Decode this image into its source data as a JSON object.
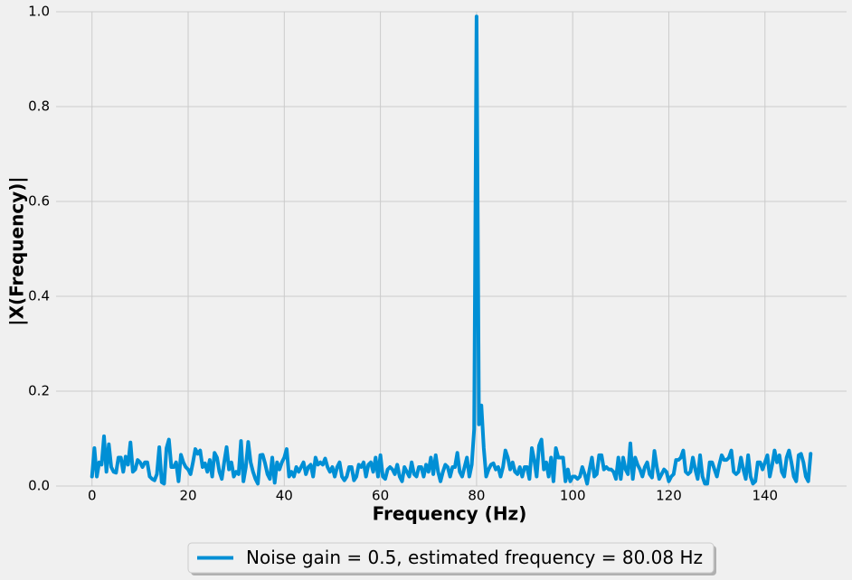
{
  "chart_data": {
    "type": "line",
    "xlabel": "Frequency (Hz)",
    "ylabel": "|X(Frequency)|",
    "x": [
      0,
      0.5,
      1,
      1.5,
      2,
      2.5,
      3,
      3.5,
      4,
      4.5,
      5,
      5.5,
      6,
      6.5,
      7,
      7.5,
      8,
      8.5,
      9,
      9.5,
      10,
      10.5,
      11,
      11.5,
      12,
      12.5,
      13,
      13.5,
      14,
      14.5,
      15,
      15.5,
      16,
      16.5,
      17,
      17.5,
      18,
      18.5,
      19,
      19.5,
      20,
      20.5,
      21,
      21.5,
      22,
      22.5,
      23,
      23.5,
      24,
      24.5,
      25,
      25.5,
      26,
      26.5,
      27,
      27.5,
      28,
      28.5,
      29,
      29.5,
      30,
      30.5,
      31,
      31.5,
      32,
      32.5,
      33,
      33.5,
      34,
      34.5,
      35,
      35.5,
      36,
      36.5,
      37,
      37.5,
      38,
      38.5,
      39,
      39.5,
      40,
      40.5,
      41,
      41.5,
      42,
      42.5,
      43,
      43.5,
      44,
      44.5,
      45,
      45.5,
      46,
      46.5,
      47,
      47.5,
      48,
      48.5,
      49,
      49.5,
      50,
      50.5,
      51,
      51.5,
      52,
      52.5,
      53,
      53.5,
      54,
      54.5,
      55,
      55.5,
      56,
      56.5,
      57,
      57.5,
      58,
      58.5,
      59,
      59.5,
      60,
      60.5,
      61,
      61.5,
      62,
      62.5,
      63,
      63.5,
      64,
      64.5,
      65,
      65.5,
      66,
      66.5,
      67,
      67.5,
      68,
      68.5,
      69,
      69.5,
      70,
      70.5,
      71,
      71.5,
      72,
      72.5,
      73,
      73.5,
      74,
      74.5,
      75,
      75.5,
      76,
      76.5,
      77,
      77.5,
      78,
      78.5,
      79,
      79.5,
      80,
      80.5,
      81,
      81.5,
      82,
      82.5,
      83,
      83.5,
      84,
      84.5,
      85,
      85.5,
      86,
      86.5,
      87,
      87.5,
      88,
      88.5,
      89,
      89.5,
      90,
      90.5,
      91,
      91.5,
      92,
      92.5,
      93,
      93.5,
      94,
      94.5,
      95,
      95.5,
      96,
      96.5,
      97,
      97.5,
      98,
      98.5,
      99,
      99.5,
      100,
      100.5,
      101,
      101.5,
      102,
      102.5,
      103,
      103.5,
      104,
      104.5,
      105,
      105.5,
      106,
      106.5,
      107,
      107.5,
      108,
      108.5,
      109,
      109.5,
      110,
      110.5,
      111,
      111.5,
      112,
      112.5,
      113,
      113.5,
      114,
      114.5,
      115,
      115.5,
      116,
      116.5,
      117,
      117.5,
      118,
      118.5,
      119,
      119.5,
      120,
      120.5,
      121,
      121.5,
      122,
      122.5,
      123,
      123.5,
      124,
      124.5,
      125,
      125.5,
      126,
      126.5,
      127,
      127.5,
      128,
      128.5,
      129,
      129.5,
      130,
      130.5,
      131,
      131.5,
      132,
      132.5,
      133,
      133.5,
      134,
      134.5,
      135,
      135.5,
      136,
      136.5,
      137,
      137.5,
      138,
      138.5,
      139,
      139.5,
      140,
      140.5,
      141,
      141.5,
      142,
      142.5,
      143,
      143.5,
      144,
      144.5,
      145,
      145.5,
      146,
      146.5,
      147,
      147.5,
      148,
      148.5,
      149,
      149.5
    ],
    "series": [
      {
        "name": "Noise gain = 0.5, estimated frequency = 80.08 Hz",
        "color": "#008fd5",
        "values": [
          0.02,
          0.08,
          0.02,
          0.05,
          0.045,
          0.105,
          0.03,
          0.088,
          0.04,
          0.03,
          0.028,
          0.06,
          0.06,
          0.03,
          0.062,
          0.045,
          0.092,
          0.03,
          0.035,
          0.055,
          0.05,
          0.04,
          0.05,
          0.05,
          0.02,
          0.015,
          0.012,
          0.025,
          0.082,
          0.008,
          0.005,
          0.08,
          0.098,
          0.04,
          0.04,
          0.05,
          0.01,
          0.066,
          0.05,
          0.04,
          0.035,
          0.025,
          0.05,
          0.078,
          0.068,
          0.075,
          0.04,
          0.048,
          0.03,
          0.055,
          0.02,
          0.07,
          0.06,
          0.03,
          0.015,
          0.05,
          0.082,
          0.035,
          0.05,
          0.02,
          0.03,
          0.025,
          0.095,
          0.01,
          0.04,
          0.093,
          0.05,
          0.03,
          0.015,
          0.005,
          0.065,
          0.066,
          0.048,
          0.025,
          0.015,
          0.06,
          0.007,
          0.05,
          0.035,
          0.05,
          0.06,
          0.078,
          0.02,
          0.03,
          0.02,
          0.04,
          0.03,
          0.04,
          0.05,
          0.025,
          0.04,
          0.045,
          0.02,
          0.06,
          0.045,
          0.05,
          0.045,
          0.058,
          0.04,
          0.03,
          0.04,
          0.02,
          0.04,
          0.05,
          0.02,
          0.012,
          0.02,
          0.04,
          0.04,
          0.012,
          0.02,
          0.045,
          0.04,
          0.05,
          0.02,
          0.045,
          0.05,
          0.03,
          0.06,
          0.02,
          0.065,
          0.02,
          0.015,
          0.035,
          0.04,
          0.035,
          0.025,
          0.045,
          0.02,
          0.01,
          0.04,
          0.03,
          0.02,
          0.05,
          0.025,
          0.02,
          0.04,
          0.04,
          0.02,
          0.045,
          0.03,
          0.06,
          0.025,
          0.065,
          0.03,
          0.01,
          0.03,
          0.045,
          0.04,
          0.02,
          0.04,
          0.04,
          0.07,
          0.03,
          0.02,
          0.04,
          0.06,
          0.02,
          0.045,
          0.12,
          0.99,
          0.13,
          0.17,
          0.08,
          0.02,
          0.035,
          0.045,
          0.048,
          0.035,
          0.04,
          0.02,
          0.04,
          0.075,
          0.06,
          0.035,
          0.05,
          0.03,
          0.025,
          0.04,
          0.02,
          0.04,
          0.04,
          0.015,
          0.08,
          0.055,
          0.02,
          0.085,
          0.098,
          0.035,
          0.05,
          0.02,
          0.06,
          0.01,
          0.08,
          0.06,
          0.06,
          0.06,
          0.01,
          0.035,
          0.01,
          0.02,
          0.02,
          0.015,
          0.02,
          0.04,
          0.025,
          0.005,
          0.035,
          0.06,
          0.02,
          0.025,
          0.065,
          0.065,
          0.035,
          0.04,
          0.035,
          0.035,
          0.03,
          0.015,
          0.06,
          0.015,
          0.06,
          0.035,
          0.025,
          0.09,
          0.015,
          0.06,
          0.045,
          0.035,
          0.02,
          0.04,
          0.05,
          0.025,
          0.018,
          0.074,
          0.04,
          0.015,
          0.025,
          0.035,
          0.03,
          0.01,
          0.02,
          0.025,
          0.055,
          0.055,
          0.06,
          0.075,
          0.03,
          0.025,
          0.03,
          0.06,
          0.035,
          0.015,
          0.065,
          0.02,
          0.005,
          0.005,
          0.05,
          0.05,
          0.035,
          0.02,
          0.045,
          0.065,
          0.055,
          0.055,
          0.06,
          0.075,
          0.03,
          0.025,
          0.03,
          0.06,
          0.035,
          0.015,
          0.065,
          0.02,
          0.005,
          0.01,
          0.05,
          0.05,
          0.035,
          0.05,
          0.065,
          0.02,
          0.045,
          0.075,
          0.05,
          0.065,
          0.03,
          0.02,
          0.06,
          0.075,
          0.05,
          0.02,
          0.01,
          0.065,
          0.068,
          0.05,
          0.02,
          0.01,
          0.068
        ]
      }
    ],
    "xlim": [
      -7.475,
      156.975
    ],
    "ylim": [
      0,
      1
    ],
    "xticks": [
      0,
      20,
      40,
      60,
      80,
      100,
      120,
      140
    ],
    "yticks": [
      {
        "value": 0,
        "label": "0.0"
      },
      {
        "value": 0.2,
        "label": "0.2"
      },
      {
        "value": 0.4,
        "label": "0.4"
      },
      {
        "value": 0.6,
        "label": "0.6"
      },
      {
        "value": 0.8,
        "label": "0.8"
      },
      {
        "value": 1,
        "label": "1.0"
      }
    ],
    "grid": true,
    "legend": "bottom"
  }
}
